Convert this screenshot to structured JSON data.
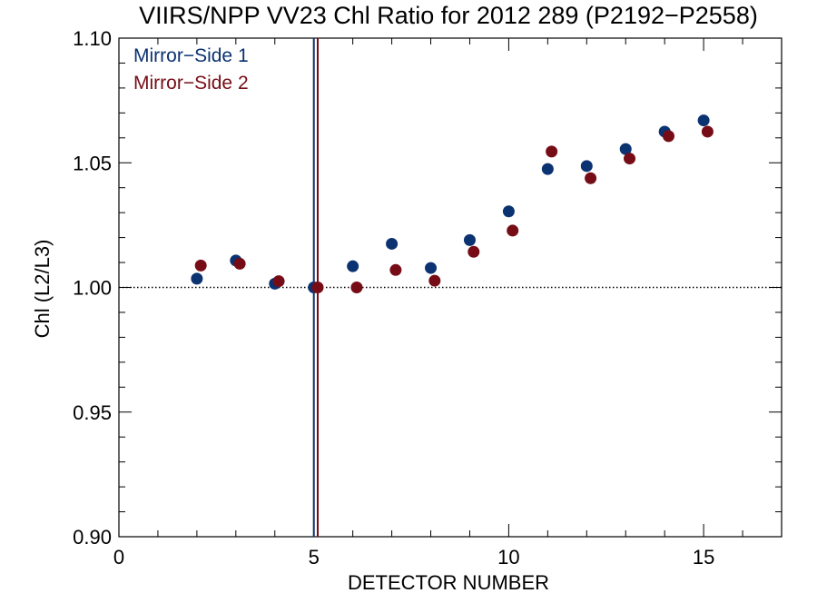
{
  "chart_data": {
    "type": "scatter",
    "title": "VIIRS/NPP VV23 Chl Ratio for 2012 289 (P2192−P2558)",
    "xlabel": "DETECTOR NUMBER",
    "ylabel": "Chl (L2/L3)",
    "xlim": [
      0,
      17
    ],
    "ylim": [
      0.9,
      1.1
    ],
    "x_ticks": [
      0,
      5,
      10,
      15
    ],
    "x_tick_labels": [
      "0",
      "5",
      "10",
      "15"
    ],
    "y_ticks": [
      0.9,
      0.95,
      1.0,
      1.05,
      1.1
    ],
    "y_tick_labels": [
      "0.90",
      "0.95",
      "1.00",
      "1.05",
      "1.10"
    ],
    "reference_line_y": 1.0,
    "vertical_lines": [
      {
        "x": 5.0,
        "series": "Mirror−Side 1"
      },
      {
        "x": 5.1,
        "series": "Mirror−Side 2"
      }
    ],
    "legend_position": "top-left",
    "series": [
      {
        "name": "Mirror−Side 1",
        "color": "#0b3271",
        "x": [
          2,
          3,
          4,
          5,
          6,
          7,
          8,
          9,
          10,
          11,
          12,
          13,
          14,
          15
        ],
        "values": [
          1.0035,
          1.0108,
          1.0015,
          1.0,
          1.0085,
          1.0175,
          1.0078,
          1.019,
          1.0305,
          1.0475,
          1.0487,
          1.0555,
          1.0625,
          1.067
        ]
      },
      {
        "name": "Mirror−Side 2",
        "color": "#760d16",
        "x": [
          2.1,
          3.1,
          4.1,
          5.1,
          6.1,
          7.1,
          8.1,
          9.1,
          10.1,
          11.1,
          12.1,
          13.1,
          14.1,
          15.1
        ],
        "values": [
          1.0088,
          1.0095,
          1.0025,
          1.0,
          1.0,
          1.007,
          1.0027,
          1.0143,
          1.0228,
          1.0545,
          1.0438,
          1.0517,
          1.0607,
          1.0625
        ]
      }
    ]
  }
}
